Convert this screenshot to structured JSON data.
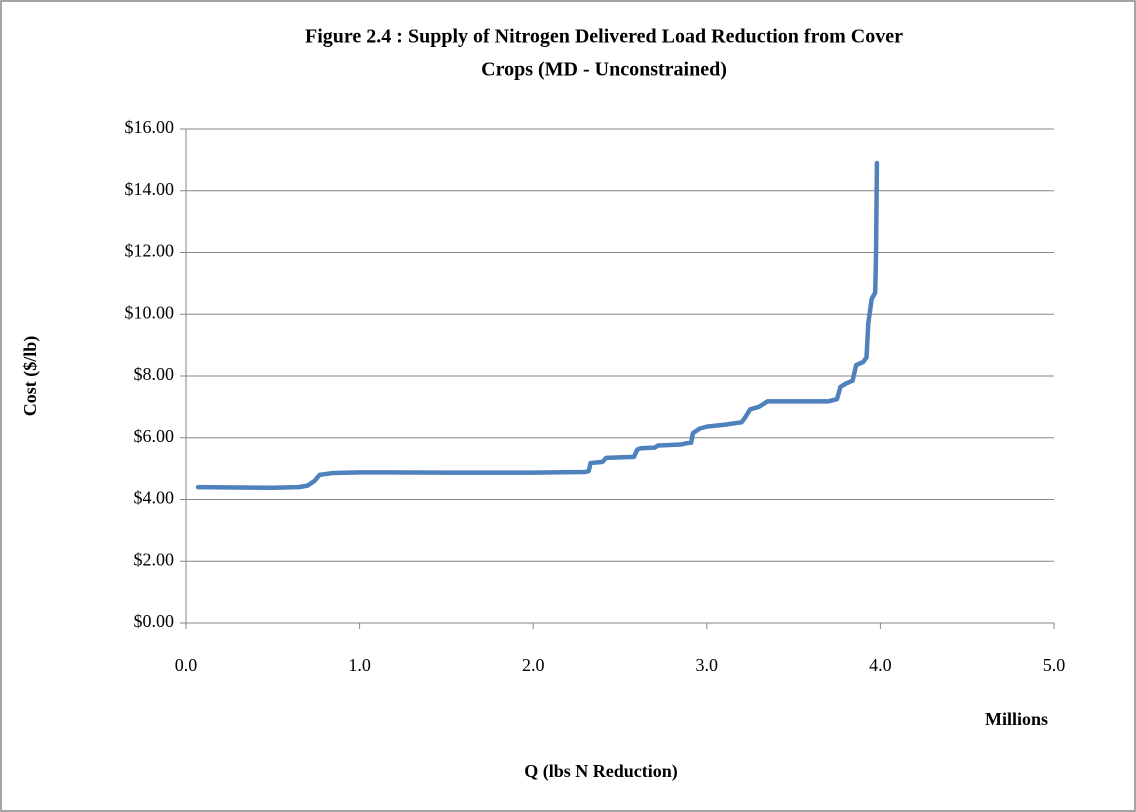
{
  "chart_data": {
    "type": "line",
    "title": [
      "Figure 2.4 : Supply of Nitrogen Delivered Load Reduction from Cover",
      "Crops (MD - Unconstrained)"
    ],
    "y_label": "Cost ($/lb)",
    "x_label": "Q (lbs N Reduction)",
    "x_display_unit": "Millions",
    "x": [
      0.07,
      0.3,
      0.5,
      0.65,
      0.7,
      0.74,
      0.77,
      0.85,
      1.0,
      1.5,
      2.0,
      2.3,
      2.32,
      2.33,
      2.4,
      2.42,
      2.58,
      2.6,
      2.62,
      2.7,
      2.72,
      2.85,
      2.88,
      2.91,
      2.92,
      2.96,
      3.0,
      3.1,
      3.2,
      3.22,
      3.25,
      3.3,
      3.35,
      3.5,
      3.7,
      3.75,
      3.77,
      3.8,
      3.84,
      3.86,
      3.9,
      3.92,
      3.93,
      3.95,
      3.97,
      3.975,
      3.98
    ],
    "series": [
      {
        "name": "Cost",
        "color": "#4f81bd",
        "values": [
          4.4,
          4.39,
          4.38,
          4.4,
          4.45,
          4.6,
          4.8,
          4.86,
          4.88,
          4.87,
          4.87,
          4.89,
          4.92,
          5.18,
          5.22,
          5.35,
          5.38,
          5.62,
          5.66,
          5.68,
          5.75,
          5.78,
          5.82,
          5.84,
          6.15,
          6.3,
          6.36,
          6.42,
          6.5,
          6.65,
          6.92,
          7.0,
          7.18,
          7.18,
          7.18,
          7.25,
          7.65,
          7.75,
          7.85,
          8.35,
          8.45,
          8.6,
          9.7,
          10.5,
          10.7,
          12,
          14.9
        ]
      }
    ],
    "xlim": [
      0,
      5
    ],
    "xticks": [
      {
        "value": 0,
        "label": "0.0"
      },
      {
        "value": 1,
        "label": "1.0"
      },
      {
        "value": 2,
        "label": "2.0"
      },
      {
        "value": 3,
        "label": "3.0"
      },
      {
        "value": 4,
        "label": "4.0"
      },
      {
        "value": 5,
        "label": "5.0"
      }
    ],
    "ylim": [
      0,
      16
    ],
    "yticks": [
      {
        "value": 0,
        "label": "$0.00"
      },
      {
        "value": 2,
        "label": "$2.00"
      },
      {
        "value": 4,
        "label": "$4.00"
      },
      {
        "value": 6,
        "label": "$6.00"
      },
      {
        "value": 8,
        "label": "$8.00"
      },
      {
        "value": 10,
        "label": "$10.00"
      },
      {
        "value": 12,
        "label": "$12.00"
      },
      {
        "value": 14,
        "label": "$14.00"
      },
      {
        "value": 16,
        "label": "$16.00"
      }
    ],
    "grid": true
  }
}
